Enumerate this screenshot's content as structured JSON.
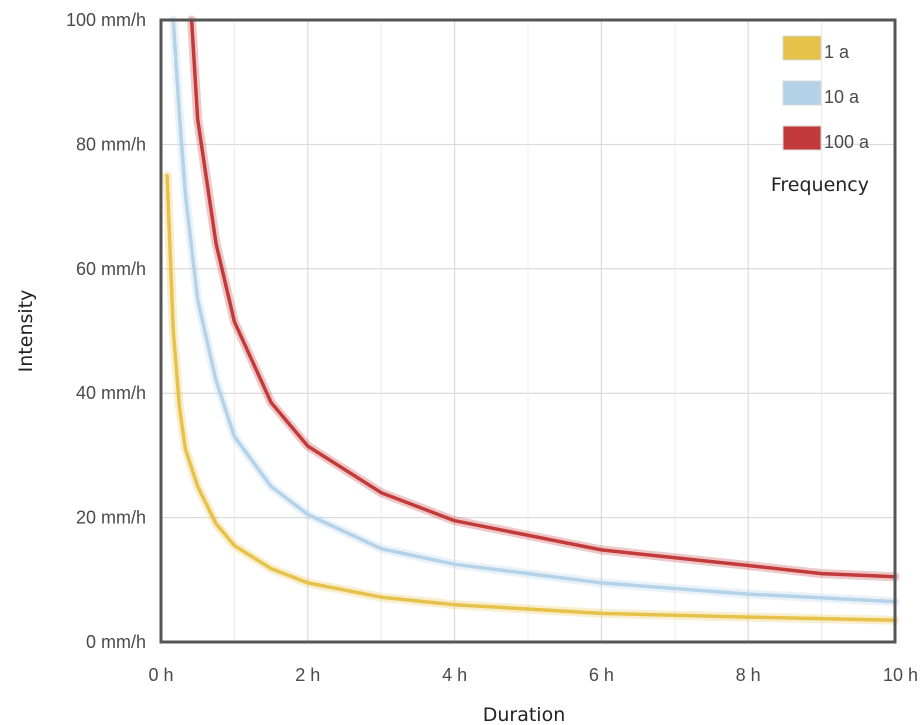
{
  "chart_data": {
    "type": "line",
    "xlabel": "Duration",
    "ylabel": "Intensity",
    "xlim": [
      0,
      10
    ],
    "ylim": [
      0,
      100
    ],
    "x_ticks": [
      {
        "value": 0,
        "label": "0 h"
      },
      {
        "value": 2,
        "label": "2 h"
      },
      {
        "value": 4,
        "label": "4 h"
      },
      {
        "value": 6,
        "label": "6 h"
      },
      {
        "value": 8,
        "label": "8 h"
      },
      {
        "value": 10,
        "label": "10 h"
      }
    ],
    "y_ticks": [
      {
        "value": 0,
        "label": "0 mm/h"
      },
      {
        "value": 20,
        "label": "20 mm/h"
      },
      {
        "value": 40,
        "label": "40 mm/h"
      },
      {
        "value": 60,
        "label": "60 mm/h"
      },
      {
        "value": 80,
        "label": "80 mm/h"
      },
      {
        "value": 100,
        "label": "100 mm/h"
      }
    ],
    "x_minor_grid": [
      1,
      3,
      5,
      7,
      9
    ],
    "grid": true,
    "legend": {
      "title": "Frequency",
      "position": "top-right"
    },
    "series": [
      {
        "name": "1 a",
        "color": "#e6c24a",
        "points": [
          [
            0.083,
            75
          ],
          [
            0.167,
            50
          ],
          [
            0.25,
            38
          ],
          [
            0.333,
            31
          ],
          [
            0.5,
            25
          ],
          [
            0.75,
            19
          ],
          [
            1,
            15.5
          ],
          [
            1.5,
            11.8
          ],
          [
            2,
            9.5
          ],
          [
            3,
            7.2
          ],
          [
            4,
            6
          ],
          [
            6,
            4.6
          ],
          [
            8,
            4
          ],
          [
            10,
            3.5
          ]
        ]
      },
      {
        "name": "10 a",
        "color": "#b4d2e8",
        "points": [
          [
            0.167,
            100
          ],
          [
            0.25,
            85
          ],
          [
            0.333,
            72
          ],
          [
            0.5,
            55
          ],
          [
            0.75,
            42
          ],
          [
            1,
            33
          ],
          [
            1.5,
            25
          ],
          [
            2,
            20.5
          ],
          [
            3,
            15
          ],
          [
            4,
            12.5
          ],
          [
            6,
            9.5
          ],
          [
            8,
            7.7
          ],
          [
            10,
            6.5
          ]
        ]
      },
      {
        "name": "100 a",
        "color": "#c23a3a",
        "points": [
          [
            0.417,
            100
          ],
          [
            0.5,
            84
          ],
          [
            0.75,
            64
          ],
          [
            1,
            51.5
          ],
          [
            1.5,
            38.5
          ],
          [
            2,
            31.5
          ],
          [
            3,
            24
          ],
          [
            4,
            19.5
          ],
          [
            6,
            14.8
          ],
          [
            8,
            12.3
          ],
          [
            9,
            11
          ],
          [
            10,
            10.5
          ]
        ]
      }
    ]
  }
}
